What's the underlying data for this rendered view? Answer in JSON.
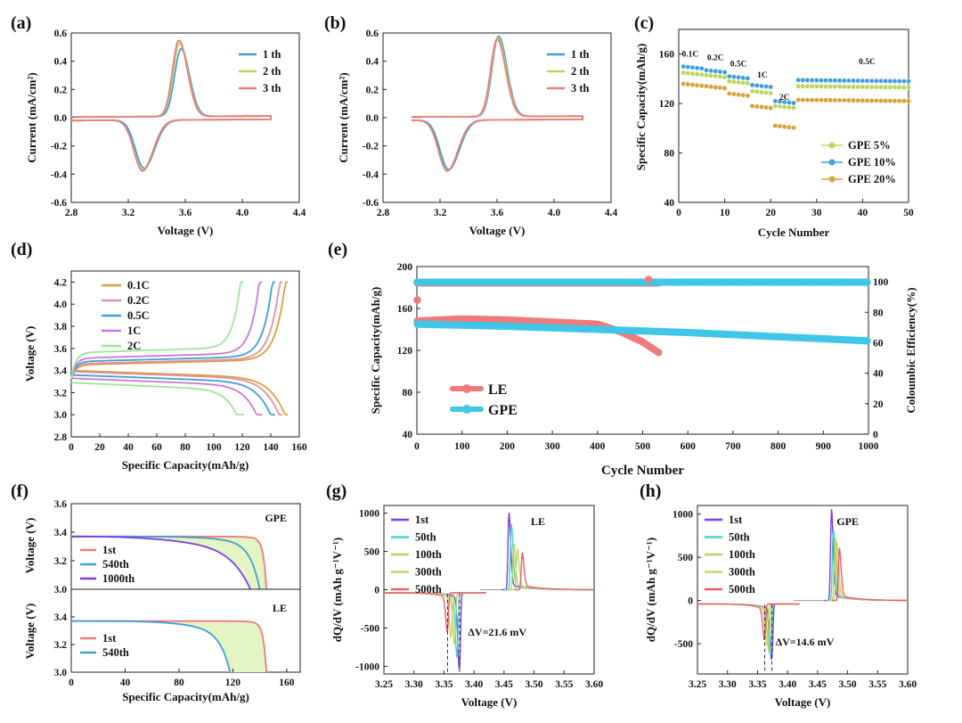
{
  "colors": {
    "blue": "#3f9fd9",
    "green": "#b9d65a",
    "red": "#ef7a7a",
    "orange": "#d6a23a",
    "pink": "#e58f9f",
    "violet": "#c77ad6",
    "lightgreen": "#9ee59b",
    "purple": "#7d3fe0",
    "cyan": "#3fd6cf",
    "fill": "#e3f5c2"
  },
  "chart_data": [
    {
      "id": "a",
      "type": "line",
      "panel_label": "(a)",
      "xlabel": "Voltage (V)",
      "ylabel": "Current (mA/cm²)",
      "xlim": [
        2.8,
        4.4
      ],
      "ylim": [
        -0.6,
        0.6
      ],
      "xticks": [
        "2.8",
        "3.2",
        "3.6",
        "4.0",
        "4.4"
      ],
      "yticks": [
        "0.6",
        "0.4",
        "0.2",
        "0.0",
        "-0.2",
        "-0.4",
        "-0.6"
      ],
      "series": [
        {
          "name": "1 th",
          "color": "#3f9fd9",
          "peaks": {
            "ox_v": 3.57,
            "ox_i": 0.48,
            "red_v": 3.31,
            "red_i": -0.34
          },
          "range": [
            2.8,
            4.2
          ]
        },
        {
          "name": "2 th",
          "color": "#b9d65a",
          "peaks": {
            "ox_v": 3.56,
            "ox_i": 0.52,
            "red_v": 3.3,
            "red_i": -0.35
          },
          "range": [
            2.8,
            4.2
          ]
        },
        {
          "name": "3 th",
          "color": "#ef7a7a",
          "peaks": {
            "ox_v": 3.555,
            "ox_i": 0.54,
            "red_v": 3.3,
            "red_i": -0.36
          },
          "range": [
            2.8,
            4.2
          ]
        }
      ]
    },
    {
      "id": "b",
      "type": "line",
      "panel_label": "(b)",
      "xlabel": "Voltage (V)",
      "ylabel": "Current (mA/cm²)",
      "xlim": [
        2.8,
        4.4
      ],
      "ylim": [
        -0.6,
        0.6
      ],
      "xticks": [
        "2.8",
        "3.2",
        "3.6",
        "4.0",
        "4.4"
      ],
      "yticks": [
        "0.6",
        "0.4",
        "0.2",
        "0.0",
        "-0.2",
        "-0.4",
        "-0.6"
      ],
      "series": [
        {
          "name": "1 th",
          "color": "#3f9fd9",
          "peaks": {
            "ox_v": 3.61,
            "ox_i": 0.57,
            "red_v": 3.26,
            "red_i": -0.35
          },
          "range": [
            3.0,
            4.2
          ]
        },
        {
          "name": "2 th",
          "color": "#b9d65a",
          "peaks": {
            "ox_v": 3.605,
            "ox_i": 0.56,
            "red_v": 3.25,
            "red_i": -0.36
          },
          "range": [
            3.0,
            4.2
          ]
        },
        {
          "name": "3 th",
          "color": "#ef7a7a",
          "peaks": {
            "ox_v": 3.6,
            "ox_i": 0.55,
            "red_v": 3.25,
            "red_i": -0.36
          },
          "range": [
            3.0,
            4.2
          ]
        }
      ]
    },
    {
      "id": "c",
      "type": "scatter",
      "panel_label": "(c)",
      "xlabel": "Cycle Number",
      "ylabel": "Specific Capacity(mAh/g)",
      "xlim": [
        0,
        50
      ],
      "ylim": [
        40,
        180
      ],
      "xticks": [
        "0",
        "10",
        "20",
        "30",
        "40",
        "50"
      ],
      "yticks": [
        "160",
        "120",
        "80",
        "40"
      ],
      "rate_labels": [
        "0.1C",
        "0.2C",
        "0.5C",
        "1C",
        "2C",
        "0.5C"
      ],
      "series": [
        {
          "name": "GPE 5%",
          "color": "#b9d65a",
          "segment_values": [
            145,
            143,
            138,
            130,
            118,
            134
          ]
        },
        {
          "name": "GPE 10%",
          "color": "#3f9fd9",
          "segment_values": [
            150,
            147,
            142,
            135,
            122,
            139
          ]
        },
        {
          "name": "GPE 20%",
          "color": "#d6a23a",
          "segment_values": [
            136,
            134,
            128,
            118,
            102,
            123
          ]
        }
      ]
    },
    {
      "id": "d",
      "type": "line",
      "panel_label": "(d)",
      "xlabel": "Specific Capacity(mAh/g)",
      "ylabel": "Voltage (V)",
      "xlim": [
        0,
        160
      ],
      "ylim": [
        2.8,
        4.3
      ],
      "xticks": [
        "0",
        "20",
        "40",
        "60",
        "80",
        "100",
        "120",
        "140",
        "160"
      ],
      "yticks": [
        "4.2",
        "4.0",
        "3.8",
        "3.6",
        "3.4",
        "3.2",
        "3.0",
        "2.8"
      ],
      "series": [
        {
          "name": "0.1C",
          "color": "#d6a23a",
          "charge_plateau": 3.45,
          "discharge_plateau": 3.4,
          "capacity": 152
        },
        {
          "name": "0.2C",
          "color": "#e58f9f",
          "charge_plateau": 3.46,
          "discharge_plateau": 3.39,
          "capacity": 148
        },
        {
          "name": "0.5C",
          "color": "#3f9fd9",
          "charge_plateau": 3.48,
          "discharge_plateau": 3.36,
          "capacity": 143
        },
        {
          "name": "1C",
          "color": "#c77ad6",
          "charge_plateau": 3.51,
          "discharge_plateau": 3.33,
          "capacity": 134
        },
        {
          "name": "2C",
          "color": "#9ee59b",
          "charge_plateau": 3.56,
          "discharge_plateau": 3.29,
          "capacity": 121
        }
      ]
    },
    {
      "id": "e",
      "type": "scatter",
      "panel_label": "(e)",
      "xlabel": "Cycle Number",
      "ylabel": "Specific Capacity(mAh/g)",
      "y2label": "Coloumbic Efficiency(%)",
      "xlim": [
        0,
        1000
      ],
      "ylim": [
        40,
        200
      ],
      "y2lim": [
        0,
        110
      ],
      "xticks": [
        "0",
        "100",
        "200",
        "300",
        "400",
        "500",
        "600",
        "700",
        "800",
        "900",
        "1000"
      ],
      "yticks": [
        "200",
        "160",
        "120",
        "80",
        "40"
      ],
      "y2ticks": [
        "100",
        "80",
        "60",
        "40",
        "20",
        "0"
      ],
      "series": [
        {
          "name": "LE",
          "color": "#ef7a7a",
          "capacity": [
            [
              1,
              148
            ],
            [
              100,
              150
            ],
            [
              200,
              149
            ],
            [
              300,
              147
            ],
            [
              400,
              145
            ],
            [
              450,
              138
            ],
            [
              500,
              128
            ],
            [
              535,
              118
            ]
          ],
          "efficiency_end": 535
        },
        {
          "name": "GPE",
          "color": "#3fc6e8",
          "capacity": [
            [
              1,
              145
            ],
            [
              200,
              143
            ],
            [
              400,
              140
            ],
            [
              600,
              137
            ],
            [
              800,
              133
            ],
            [
              1000,
              129
            ]
          ],
          "efficiency_end": 1000
        }
      ]
    },
    {
      "id": "f",
      "type": "line",
      "panel_label": "(f)",
      "xlabel": "Specific Capacity(mAh/g)",
      "ylabel": "Voltage (V)",
      "xlim": [
        0,
        170
      ],
      "ylim": [
        3.0,
        3.6
      ],
      "xticks": [
        "0",
        "40",
        "80",
        "120",
        "160"
      ],
      "yticks_top": [
        "3.6",
        "3.4",
        "3.2",
        "3.0"
      ],
      "yticks_bottom": [
        "3.4",
        "3.2",
        "3.0"
      ],
      "subpanels": [
        {
          "tag": "GPE",
          "series": [
            {
              "name": "1st",
              "color": "#ef7a7a",
              "capacity": 145
            },
            {
              "name": "540th",
              "color": "#3f9fd9",
              "capacity": 140
            },
            {
              "name": "1000th",
              "color": "#7d3fe0",
              "capacity": 133
            }
          ]
        },
        {
          "tag": "LE",
          "series": [
            {
              "name": "1st",
              "color": "#ef7a7a",
              "capacity": 145
            },
            {
              "name": "540th",
              "color": "#3f9fd9",
              "capacity": 118
            }
          ]
        }
      ]
    },
    {
      "id": "g",
      "type": "line",
      "panel_label": "(g)",
      "xlabel": "Voltage (V)",
      "ylabel": "dQ/dV (mAh g⁻¹V⁻¹)",
      "xlim": [
        3.25,
        3.6
      ],
      "ylim": [
        -1100,
        1100
      ],
      "tag": "LE",
      "annotation": "ΔV=21.6 mV",
      "xticks": [
        "3.25",
        "3.30",
        "3.35",
        "3.40",
        "3.45",
        "3.50",
        "3.55",
        "3.60"
      ],
      "yticks": [
        "1000",
        "500",
        "0",
        "-500",
        "-1000"
      ],
      "series": [
        {
          "name": "1st",
          "color": "#7d3fe0",
          "ox_peak": [
            3.458,
            960
          ],
          "red_peak": [
            3.376,
            -980
          ]
        },
        {
          "name": "50th",
          "color": "#3fd6cf",
          "ox_peak": [
            3.462,
            800
          ],
          "red_peak": [
            3.372,
            -820
          ]
        },
        {
          "name": "100th",
          "color": "#b9d65a",
          "ox_peak": [
            3.466,
            560
          ],
          "red_peak": [
            3.368,
            -650
          ]
        },
        {
          "name": "300th",
          "color": "#c8d66a",
          "ox_peak": [
            3.472,
            480
          ],
          "red_peak": [
            3.362,
            -560
          ]
        },
        {
          "name": "500th",
          "color": "#ef5a6a",
          "ox_peak": [
            3.48,
            430
          ],
          "red_peak": [
            3.356,
            -480
          ]
        }
      ]
    },
    {
      "id": "h",
      "type": "line",
      "panel_label": "(h)",
      "xlabel": "Voltage (V)",
      "ylabel": "dQ/dV (mAh g⁻¹V⁻¹)",
      "xlim": [
        3.25,
        3.6
      ],
      "ylim": [
        -850,
        1100
      ],
      "tag": "GPE",
      "annotation": "ΔV=14.6 mV",
      "xticks": [
        "3.25",
        "3.30",
        "3.35",
        "3.40",
        "3.45",
        "3.50",
        "3.55",
        "3.60"
      ],
      "yticks": [
        "1000",
        "500",
        "0",
        "-500"
      ],
      "series": [
        {
          "name": "1st",
          "color": "#7d3fe0",
          "ox_peak": [
            3.473,
            1000
          ],
          "red_peak": [
            3.374,
            -620
          ]
        },
        {
          "name": "50th",
          "color": "#3fd6cf",
          "ox_peak": [
            3.476,
            780
          ],
          "red_peak": [
            3.372,
            -560
          ]
        },
        {
          "name": "100th",
          "color": "#b9d65a",
          "ox_peak": [
            3.479,
            680
          ],
          "red_peak": [
            3.369,
            -500
          ]
        },
        {
          "name": "300th",
          "color": "#c8d66a",
          "ox_peak": [
            3.482,
            620
          ],
          "red_peak": [
            3.366,
            -440
          ]
        },
        {
          "name": "500th",
          "color": "#ef5a6a",
          "ox_peak": [
            3.486,
            560
          ],
          "red_peak": [
            3.362,
            -380
          ]
        }
      ]
    }
  ]
}
